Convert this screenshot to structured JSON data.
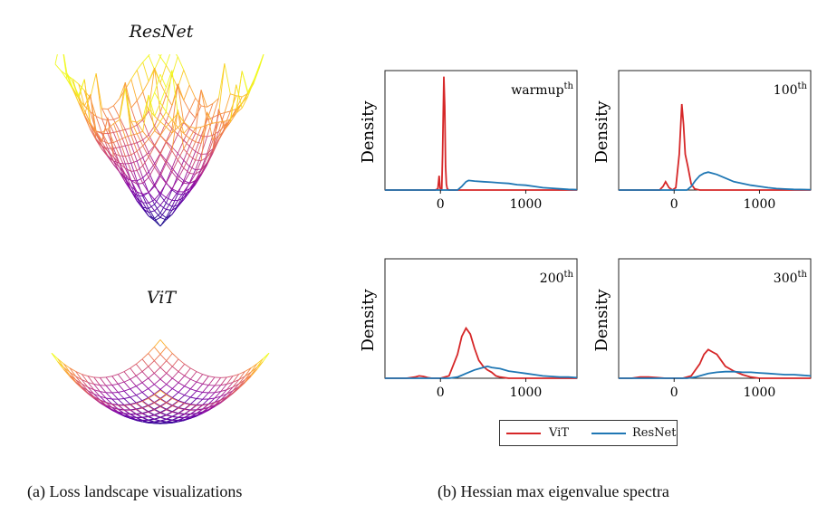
{
  "figure_a": {
    "resnet_title": "ResNet",
    "vit_title": "ViT",
    "caption": "(a) Loss landscape visualizations"
  },
  "figure_b": {
    "caption": "(b) Hessian max eigenvalue spectra",
    "legend": [
      {
        "label": "ViT",
        "color": "#d62728"
      },
      {
        "label": "ResNet",
        "color": "#1f77b4"
      }
    ]
  },
  "chart_data": [
    {
      "type": "line",
      "panel_label": "warmup",
      "panel_sup": "th",
      "ylabel": "Density",
      "xticks": [
        0,
        1000
      ],
      "xlim": [
        -650,
        1600
      ],
      "ylim": [
        0,
        1.0
      ],
      "series": [
        {
          "name": "ViT",
          "color": "#d62728",
          "x": [
            -650,
            -60,
            -30,
            -15,
            -5,
            5,
            15,
            25,
            40,
            50,
            60,
            70,
            80,
            100,
            150,
            400,
            1600
          ],
          "y": [
            0,
            0,
            0.01,
            0.12,
            0.02,
            0,
            0.01,
            0.3,
            0.95,
            0.7,
            0.2,
            0.05,
            0.01,
            0,
            0,
            0,
            0
          ]
        },
        {
          "name": "ResNet",
          "color": "#1f77b4",
          "x": [
            -650,
            200,
            250,
            300,
            330,
            400,
            500,
            600,
            700,
            800,
            900,
            1000,
            1100,
            1200,
            1300,
            1400,
            1500,
            1600
          ],
          "y": [
            0,
            0,
            0.03,
            0.07,
            0.08,
            0.075,
            0.07,
            0.065,
            0.06,
            0.055,
            0.045,
            0.04,
            0.03,
            0.02,
            0.015,
            0.01,
            0.005,
            0.003
          ]
        }
      ]
    },
    {
      "type": "line",
      "panel_label": "100",
      "panel_sup": "th",
      "ylabel": "Density",
      "xticks": [
        0,
        1000
      ],
      "xlim": [
        -650,
        1600
      ],
      "ylim": [
        0,
        1.0
      ],
      "series": [
        {
          "name": "ViT",
          "color": "#d62728",
          "x": [
            -650,
            -170,
            -130,
            -100,
            -60,
            -20,
            20,
            60,
            90,
            110,
            130,
            160,
            200,
            240,
            300,
            1600
          ],
          "y": [
            0,
            0,
            0.03,
            0.07,
            0.02,
            0,
            0.02,
            0.3,
            0.72,
            0.55,
            0.3,
            0.2,
            0.05,
            0.01,
            0,
            0
          ]
        },
        {
          "name": "ResNet",
          "color": "#1f77b4",
          "x": [
            -650,
            150,
            200,
            250,
            300,
            350,
            400,
            500,
            600,
            700,
            800,
            900,
            1000,
            1100,
            1200,
            1300,
            1400,
            1600
          ],
          "y": [
            0,
            0,
            0.03,
            0.08,
            0.12,
            0.14,
            0.15,
            0.13,
            0.1,
            0.07,
            0.055,
            0.04,
            0.03,
            0.02,
            0.012,
            0.008,
            0.005,
            0.003
          ]
        }
      ]
    },
    {
      "type": "line",
      "panel_label": "200",
      "panel_sup": "th",
      "ylabel": "Density",
      "xticks": [
        0,
        1000
      ],
      "xlim": [
        -650,
        1600
      ],
      "ylim": [
        0,
        1.0
      ],
      "series": [
        {
          "name": "ViT",
          "color": "#d62728",
          "x": [
            -650,
            -400,
            -300,
            -250,
            -200,
            -150,
            -100,
            0,
            100,
            200,
            250,
            300,
            350,
            400,
            450,
            500,
            550,
            600,
            650,
            700,
            800,
            900,
            1600
          ],
          "y": [
            0,
            0,
            0.01,
            0.02,
            0.015,
            0.005,
            0,
            0,
            0.02,
            0.2,
            0.35,
            0.42,
            0.37,
            0.25,
            0.15,
            0.1,
            0.07,
            0.05,
            0.02,
            0.01,
            0,
            0,
            0
          ]
        },
        {
          "name": "ResNet",
          "color": "#1f77b4",
          "x": [
            -650,
            100,
            200,
            300,
            400,
            500,
            550,
            600,
            700,
            800,
            900,
            1000,
            1100,
            1200,
            1300,
            1400,
            1500,
            1600
          ],
          "y": [
            0,
            0,
            0.01,
            0.04,
            0.07,
            0.09,
            0.1,
            0.09,
            0.08,
            0.06,
            0.05,
            0.04,
            0.03,
            0.02,
            0.015,
            0.01,
            0.01,
            0.005
          ]
        }
      ]
    },
    {
      "type": "line",
      "panel_label": "300",
      "panel_sup": "th",
      "ylabel": "Density",
      "xticks": [
        0,
        1000
      ],
      "xlim": [
        -650,
        1600
      ],
      "ylim": [
        0,
        1.0
      ],
      "series": [
        {
          "name": "ViT",
          "color": "#d62728",
          "x": [
            -650,
            -500,
            -400,
            -300,
            -200,
            -100,
            0,
            100,
            200,
            300,
            350,
            400,
            450,
            500,
            550,
            600,
            700,
            800,
            900,
            1000,
            1100,
            1600
          ],
          "y": [
            0,
            0,
            0.01,
            0.01,
            0.005,
            0,
            0,
            0,
            0.02,
            0.12,
            0.2,
            0.24,
            0.22,
            0.2,
            0.15,
            0.1,
            0.06,
            0.03,
            0.01,
            0,
            0,
            0
          ]
        },
        {
          "name": "ResNet",
          "color": "#1f77b4",
          "x": [
            -650,
            150,
            250,
            300,
            400,
            500,
            600,
            700,
            800,
            900,
            1000,
            1100,
            1200,
            1300,
            1400,
            1500,
            1600
          ],
          "y": [
            0,
            0,
            0.01,
            0.02,
            0.04,
            0.05,
            0.055,
            0.055,
            0.05,
            0.05,
            0.045,
            0.04,
            0.035,
            0.03,
            0.03,
            0.025,
            0.02
          ]
        }
      ]
    }
  ]
}
